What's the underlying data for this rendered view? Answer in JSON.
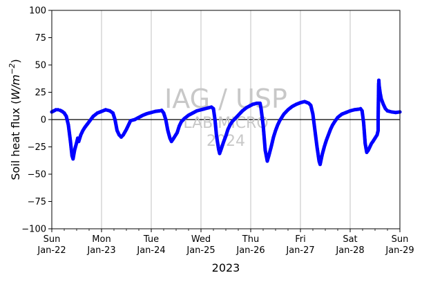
{
  "chart_data": {
    "type": "scatter",
    "title": "",
    "xlabel": "2023",
    "ylabel": "Soil heat flux (W/m⁻²)",
    "ylabel_base": "Soil heat flux (",
    "ylabel_unit_main": "W/m",
    "ylabel_unit_sup": "−2",
    "ylabel_close": ")",
    "xlim": [
      "2023-01-22T00:00",
      "2023-01-29T00:00"
    ],
    "ylim": [
      -100,
      100
    ],
    "y_ticks": [
      -100,
      -75,
      -50,
      -25,
      0,
      25,
      50,
      75,
      100
    ],
    "y_tick_labels": [
      "−100",
      "−75",
      "−50",
      "−25",
      "0",
      "25",
      "50",
      "75",
      "100"
    ],
    "x_major_ticks": [
      {
        "date": "2023-01-22T00:00",
        "day": "Sun",
        "date_label": "Jan-22"
      },
      {
        "date": "2023-01-23T00:00",
        "day": "Mon",
        "date_label": "Jan-23"
      },
      {
        "date": "2023-01-24T00:00",
        "day": "Tue",
        "date_label": "Jan-24"
      },
      {
        "date": "2023-01-25T00:00",
        "day": "Wed",
        "date_label": "Jan-25"
      },
      {
        "date": "2023-01-26T00:00",
        "day": "Thu",
        "date_label": "Jan-26"
      },
      {
        "date": "2023-01-27T00:00",
        "day": "Fri",
        "date_label": "Jan-27"
      },
      {
        "date": "2023-01-28T00:00",
        "day": "Sat",
        "date_label": "Jan-28"
      },
      {
        "date": "2023-01-29T00:00",
        "day": "Sun",
        "date_label": "Jan-29"
      }
    ],
    "x_minor_tick_hours": 6,
    "grid": "vertical-major",
    "zero_line": true,
    "series": [
      {
        "color": "#0000ff",
        "points": [
          [
            "2023-01-22T00:00",
            7
          ],
          [
            "2023-01-22T01:00",
            8
          ],
          [
            "2023-01-22T02:00",
            9
          ],
          [
            "2023-01-22T03:00",
            9
          ],
          [
            "2023-01-22T04:00",
            8.5
          ],
          [
            "2023-01-22T05:00",
            7.5
          ],
          [
            "2023-01-22T06:00",
            6
          ],
          [
            "2023-01-22T07:00",
            3
          ],
          [
            "2023-01-22T08:00",
            -5
          ],
          [
            "2023-01-22T09:00",
            -20
          ],
          [
            "2023-01-22T09:45",
            -33
          ],
          [
            "2023-01-22T10:15",
            -36
          ],
          [
            "2023-01-22T11:00",
            -28
          ],
          [
            "2023-01-22T12:00",
            -21
          ],
          [
            "2023-01-22T12:30",
            -17
          ],
          [
            "2023-01-22T13:00",
            -20
          ],
          [
            "2023-01-22T14:00",
            -14
          ],
          [
            "2023-01-22T15:00",
            -10
          ],
          [
            "2023-01-22T16:00",
            -7
          ],
          [
            "2023-01-22T18:00",
            -2
          ],
          [
            "2023-01-22T20:00",
            3
          ],
          [
            "2023-01-22T22:00",
            6
          ],
          [
            "2023-01-23T00:00",
            7.5
          ],
          [
            "2023-01-23T02:00",
            9
          ],
          [
            "2023-01-23T04:00",
            8
          ],
          [
            "2023-01-23T05:30",
            6
          ],
          [
            "2023-01-23T06:30",
            0
          ],
          [
            "2023-01-23T07:30",
            -10
          ],
          [
            "2023-01-23T08:30",
            -14
          ],
          [
            "2023-01-23T09:30",
            -16
          ],
          [
            "2023-01-23T10:30",
            -14
          ],
          [
            "2023-01-23T12:00",
            -9
          ],
          [
            "2023-01-23T13:00",
            -5
          ],
          [
            "2023-01-23T14:00",
            -1
          ],
          [
            "2023-01-23T16:00",
            0
          ],
          [
            "2023-01-23T18:00",
            2
          ],
          [
            "2023-01-23T20:00",
            4
          ],
          [
            "2023-01-23T22:00",
            5.5
          ],
          [
            "2023-01-24T00:00",
            6.5
          ],
          [
            "2023-01-24T02:00",
            7.5
          ],
          [
            "2023-01-24T04:00",
            8
          ],
          [
            "2023-01-24T05:00",
            8.5
          ],
          [
            "2023-01-24T06:00",
            6
          ],
          [
            "2023-01-24T07:00",
            0
          ],
          [
            "2023-01-24T08:00",
            -10
          ],
          [
            "2023-01-24T09:00",
            -17
          ],
          [
            "2023-01-24T09:45",
            -20
          ],
          [
            "2023-01-24T10:30",
            -18
          ],
          [
            "2023-01-24T11:30",
            -15
          ],
          [
            "2023-01-24T12:30",
            -12
          ],
          [
            "2023-01-24T13:30",
            -6
          ],
          [
            "2023-01-24T14:30",
            -2
          ],
          [
            "2023-01-24T16:00",
            1
          ],
          [
            "2023-01-24T18:00",
            4
          ],
          [
            "2023-01-24T20:00",
            6
          ],
          [
            "2023-01-24T22:00",
            8
          ],
          [
            "2023-01-25T00:00",
            9
          ],
          [
            "2023-01-25T02:00",
            10
          ],
          [
            "2023-01-25T04:00",
            11
          ],
          [
            "2023-01-25T05:00",
            11.5
          ],
          [
            "2023-01-25T06:00",
            10
          ],
          [
            "2023-01-25T06:45",
            0
          ],
          [
            "2023-01-25T07:30",
            -15
          ],
          [
            "2023-01-25T08:30",
            -27
          ],
          [
            "2023-01-25T09:00",
            -31
          ],
          [
            "2023-01-25T09:45",
            -27
          ],
          [
            "2023-01-25T11:00",
            -20
          ],
          [
            "2023-01-25T12:00",
            -15
          ],
          [
            "2023-01-25T13:00",
            -9
          ],
          [
            "2023-01-25T14:00",
            -5
          ],
          [
            "2023-01-25T15:00",
            -2
          ],
          [
            "2023-01-25T16:00",
            0
          ],
          [
            "2023-01-25T18:00",
            4
          ],
          [
            "2023-01-25T20:00",
            8
          ],
          [
            "2023-01-25T22:00",
            11
          ],
          [
            "2023-01-26T00:00",
            13
          ],
          [
            "2023-01-26T01:00",
            14
          ],
          [
            "2023-01-26T03:00",
            15
          ],
          [
            "2023-01-26T04:30",
            15
          ],
          [
            "2023-01-26T05:00",
            10
          ],
          [
            "2023-01-26T06:00",
            -5
          ],
          [
            "2023-01-26T07:00",
            -28
          ],
          [
            "2023-01-26T08:00",
            -38
          ],
          [
            "2023-01-26T08:45",
            -33
          ],
          [
            "2023-01-26T10:00",
            -24
          ],
          [
            "2023-01-26T11:00",
            -16
          ],
          [
            "2023-01-26T12:00",
            -10
          ],
          [
            "2023-01-26T13:00",
            -5
          ],
          [
            "2023-01-26T14:00",
            -1
          ],
          [
            "2023-01-26T15:00",
            2
          ],
          [
            "2023-01-26T16:00",
            5
          ],
          [
            "2023-01-26T18:00",
            9
          ],
          [
            "2023-01-26T20:00",
            12
          ],
          [
            "2023-01-26T22:00",
            14
          ],
          [
            "2023-01-27T00:00",
            15.5
          ],
          [
            "2023-01-27T02:00",
            16.5
          ],
          [
            "2023-01-27T04:00",
            15
          ],
          [
            "2023-01-27T05:00",
            13
          ],
          [
            "2023-01-27T06:00",
            5
          ],
          [
            "2023-01-27T07:00",
            -10
          ],
          [
            "2023-01-27T08:00",
            -25
          ],
          [
            "2023-01-27T09:00",
            -38
          ],
          [
            "2023-01-27T09:30",
            -41
          ],
          [
            "2023-01-27T10:30",
            -32
          ],
          [
            "2023-01-27T11:30",
            -25
          ],
          [
            "2023-01-27T12:30",
            -19
          ],
          [
            "2023-01-27T13:30",
            -14
          ],
          [
            "2023-01-27T14:30",
            -9
          ],
          [
            "2023-01-27T15:30",
            -5
          ],
          [
            "2023-01-27T16:30",
            -2
          ],
          [
            "2023-01-27T18:00",
            2
          ],
          [
            "2023-01-27T20:00",
            5
          ],
          [
            "2023-01-27T22:00",
            6.5
          ],
          [
            "2023-01-28T00:00",
            8
          ],
          [
            "2023-01-28T02:00",
            9
          ],
          [
            "2023-01-28T04:00",
            9.5
          ],
          [
            "2023-01-28T05:00",
            10
          ],
          [
            "2023-01-28T05:45",
            8
          ],
          [
            "2023-01-28T06:30",
            -3
          ],
          [
            "2023-01-28T07:15",
            -22
          ],
          [
            "2023-01-28T08:00",
            -30
          ],
          [
            "2023-01-28T08:45",
            -28
          ],
          [
            "2023-01-28T09:30",
            -25
          ],
          [
            "2023-01-28T10:15",
            -22
          ],
          [
            "2023-01-28T11:00",
            -20
          ],
          [
            "2023-01-28T12:00",
            -17
          ],
          [
            "2023-01-28T13:00",
            -14
          ],
          [
            "2023-01-28T13:30",
            -10
          ],
          [
            "2023-01-28T13:30",
            1
          ],
          [
            "2023-01-28T13:45",
            33
          ],
          [
            "2023-01-28T13:50",
            36
          ],
          [
            "2023-01-28T14:00",
            31
          ],
          [
            "2023-01-28T14:30",
            24
          ],
          [
            "2023-01-28T15:00",
            19
          ],
          [
            "2023-01-28T16:00",
            14
          ],
          [
            "2023-01-28T17:00",
            10
          ],
          [
            "2023-01-28T18:00",
            8
          ],
          [
            "2023-01-28T20:00",
            7
          ],
          [
            "2023-01-28T22:00",
            6.5
          ],
          [
            "2023-01-29T00:00",
            7
          ]
        ]
      }
    ]
  },
  "watermark": {
    "line1": "IAG / USP",
    "line2": "LAB MICRO",
    "line3": "2024"
  }
}
